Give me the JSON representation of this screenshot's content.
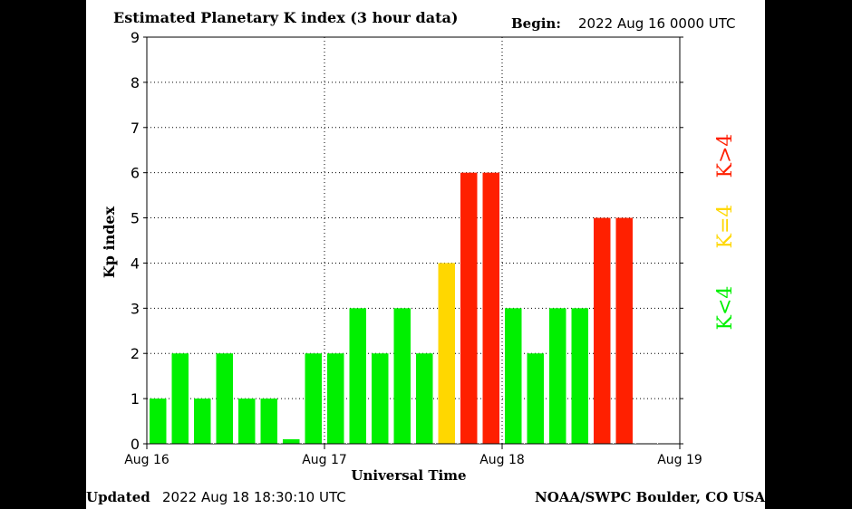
{
  "header": {
    "title": "Estimated Planetary K index (3 hour data)",
    "begin_label": "Begin:",
    "begin_value": "2022 Aug 16 0000 UTC"
  },
  "footer": {
    "updated_label": "Updated",
    "updated_value": "2022 Aug 18 18:30:10 UTC",
    "credit": "NOAA/SWPC Boulder, CO USA"
  },
  "colors": {
    "low": "#00f000",
    "equal": "#ffd700",
    "high": "#ff2000"
  },
  "chart_data": {
    "type": "bar",
    "ylabel": "Kp index",
    "xlabel": "Universal Time",
    "ylim": [
      0,
      9
    ],
    "y_ticks": [
      "0",
      "1",
      "2",
      "3",
      "4",
      "5",
      "6",
      "7",
      "8",
      "9"
    ],
    "x_ticks": [
      "Aug 16",
      "Aug 17",
      "Aug 18",
      "Aug 19"
    ],
    "grid": "dotted",
    "interval_hours": 3,
    "values": [
      1,
      2,
      1,
      2,
      1,
      1,
      0.1,
      2,
      2,
      3,
      2,
      3,
      2,
      4,
      6,
      6,
      3,
      2,
      3,
      3,
      5,
      5
    ],
    "legend": [
      {
        "label": "K<4",
        "color": "#00f000"
      },
      {
        "label": "K=4",
        "color": "#ffd700"
      },
      {
        "label": "K>4",
        "color": "#ff2000"
      }
    ]
  }
}
